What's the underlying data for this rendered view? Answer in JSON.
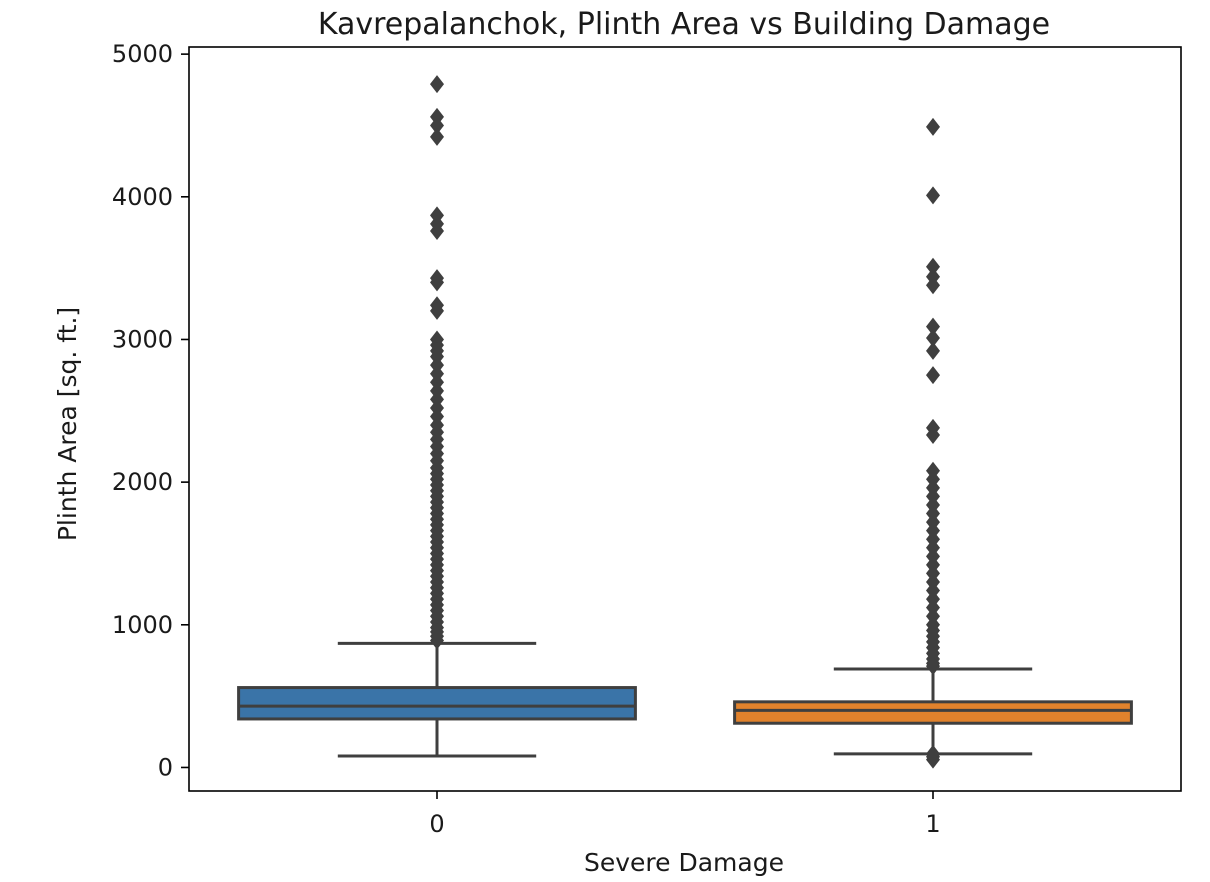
{
  "chart_data": {
    "type": "box",
    "title": "Kavrepalanchok, Plinth Area vs Building Damage",
    "xlabel": "Severe Damage",
    "ylabel": "Plinth Area [sq. ft.]",
    "categories": [
      "0",
      "1"
    ],
    "ylim": [
      -165,
      5050
    ],
    "yticks": [
      0,
      1000,
      2000,
      3000,
      4000,
      5000
    ],
    "grid": false,
    "boxes": [
      {
        "category": "0",
        "color": "#3a74a8",
        "whisker_low": 80,
        "q1": 340,
        "median": 430,
        "q3": 560,
        "whisker_high": 870,
        "outliers": [
          4790,
          4560,
          4500,
          4420,
          3870,
          3810,
          3760,
          3430,
          3400,
          3240,
          3200,
          3000,
          2960,
          2920,
          2880,
          2820,
          2760,
          2700,
          2640,
          2580,
          2520,
          2460,
          2400,
          2350,
          2300,
          2250,
          2200,
          2150,
          2100,
          2060,
          2020,
          1980,
          1940,
          1900,
          1860,
          1820,
          1780,
          1740,
          1700,
          1660,
          1620,
          1580,
          1540,
          1500,
          1460,
          1420,
          1380,
          1340,
          1300,
          1260,
          1220,
          1180,
          1140,
          1100,
          1060,
          1020,
          980,
          950,
          920,
          890
        ]
      },
      {
        "category": "1",
        "color": "#e1822c",
        "whisker_low": 95,
        "q1": 310,
        "median": 400,
        "q3": 460,
        "whisker_high": 690,
        "outliers": [
          4490,
          4010,
          3510,
          3440,
          3380,
          3090,
          3010,
          2920,
          2750,
          2380,
          2330,
          2080,
          2020,
          1960,
          1900,
          1840,
          1780,
          1720,
          1660,
          1600,
          1540,
          1480,
          1420,
          1360,
          1300,
          1240,
          1180,
          1120,
          1060,
          1000,
          960,
          920,
          880,
          840,
          800,
          760,
          730,
          710,
          95,
          75,
          55
        ]
      }
    ]
  }
}
